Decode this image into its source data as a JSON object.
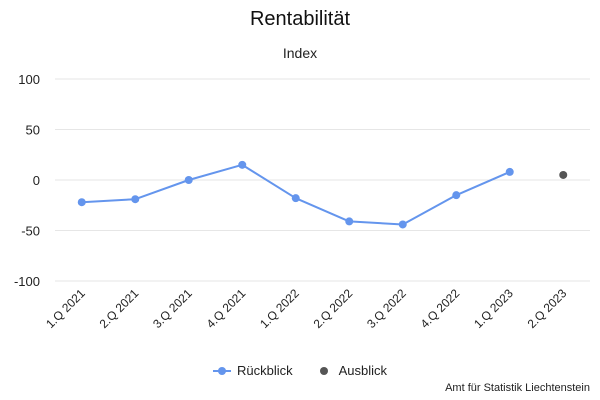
{
  "title": "Rentabilität",
  "subtitle": "Index",
  "credits": "Amt für Statistik Liechtenstein",
  "chart_data": {
    "type": "line",
    "title": "Rentabilität",
    "subtitle": "Index",
    "xlabel": "",
    "ylabel": "",
    "categories": [
      "1.Q 2021",
      "2.Q 2021",
      "3.Q 2021",
      "4.Q 2021",
      "1.Q 2022",
      "2.Q 2022",
      "3.Q 2022",
      "4.Q 2022",
      "1.Q 2023",
      "2.Q 2023"
    ],
    "ylim": [
      -100,
      100
    ],
    "yticks": [
      100,
      50,
      0,
      -50,
      -100
    ],
    "grid": true,
    "legend_position": "bottom",
    "series": [
      {
        "name": "Rückblick",
        "color": "#6495ED",
        "values": [
          -22,
          -19,
          0,
          15,
          -18,
          -41,
          -44,
          -15,
          8,
          null
        ]
      },
      {
        "name": "Ausblick",
        "color": "#555555",
        "values": [
          null,
          null,
          null,
          null,
          null,
          null,
          null,
          null,
          null,
          5
        ]
      }
    ]
  }
}
